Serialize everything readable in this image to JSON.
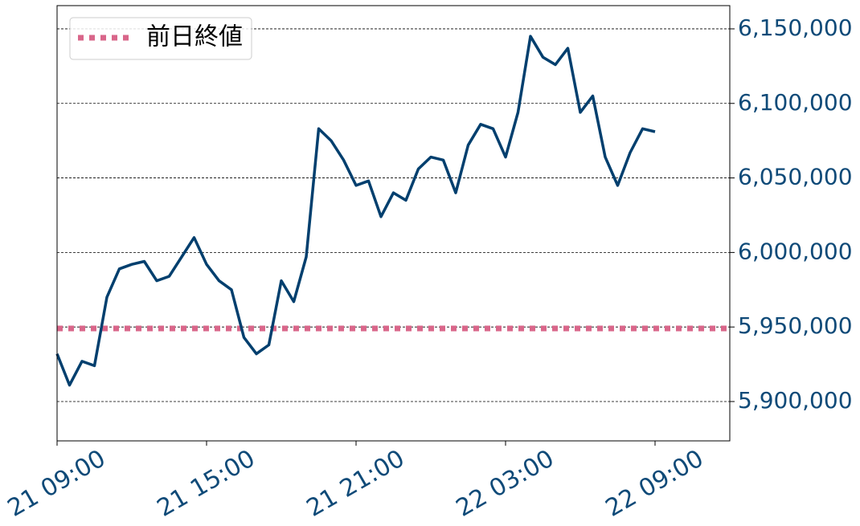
{
  "chart_data": {
    "type": "line",
    "x": [
      "21 09:00",
      "21 09:30",
      "21 10:00",
      "21 10:30",
      "21 11:00",
      "21 11:30",
      "21 12:00",
      "21 12:30",
      "21 13:00",
      "21 13:30",
      "21 14:00",
      "21 14:30",
      "21 15:00",
      "21 15:30",
      "21 16:00",
      "21 16:30",
      "21 17:00",
      "21 17:30",
      "21 18:00",
      "21 18:30",
      "21 19:00",
      "21 19:30",
      "21 20:00",
      "21 20:30",
      "21 21:00",
      "21 21:30",
      "21 22:00",
      "21 22:30",
      "21 23:00",
      "21 23:30",
      "22 00:00",
      "22 00:30",
      "22 01:00",
      "22 01:30",
      "22 02:00",
      "22 02:30",
      "22 03:00",
      "22 03:30",
      "22 04:00",
      "22 04:30",
      "22 05:00",
      "22 05:30",
      "22 06:00",
      "22 06:30",
      "22 07:00",
      "22 07:30",
      "22 08:00",
      "22 08:30",
      "22 09:00"
    ],
    "series": [
      {
        "color": "#003f6e",
        "values": [
          5932000,
          5911000,
          5927000,
          5924000,
          5970000,
          5989000,
          5992000,
          5994000,
          5981000,
          5984000,
          5997000,
          6010000,
          5992000,
          5981000,
          5975000,
          5943000,
          5932000,
          5938000,
          5981000,
          5967000,
          5997000,
          6083000,
          6075000,
          6062000,
          6045000,
          6048000,
          6024000,
          6040000,
          6035000,
          6056000,
          6064000,
          6062000,
          6040000,
          6072000,
          6086000,
          6083000,
          6064000,
          6094000,
          6145000,
          6131000,
          6126000,
          6137000,
          6094000,
          6105000,
          6064000,
          6045000,
          6067000,
          6083000,
          6081000
        ]
      }
    ],
    "hlines": [
      {
        "name": "前日終値",
        "value": 5949000,
        "color": "#d9668a",
        "style": "dotted"
      }
    ],
    "xlim": [
      "21 09:00",
      "22 12:00"
    ],
    "xticks": [
      "21 09:00",
      "21 15:00",
      "21 21:00",
      "22 03:00",
      "22 09:00"
    ],
    "ylim": [
      5873600,
      6165600
    ],
    "yticks": [
      {
        "value": 5900000,
        "label": "5,900,000"
      },
      {
        "value": 5950000,
        "label": "5,950,000"
      },
      {
        "value": 6000000,
        "label": "6,000,000"
      },
      {
        "value": 6050000,
        "label": "6,050,000"
      },
      {
        "value": 6100000,
        "label": "6,100,000"
      },
      {
        "value": 6150000,
        "label": "6,150,000"
      }
    ],
    "y_axis_side": "right",
    "grid": true,
    "legend_position": "upper-left"
  }
}
